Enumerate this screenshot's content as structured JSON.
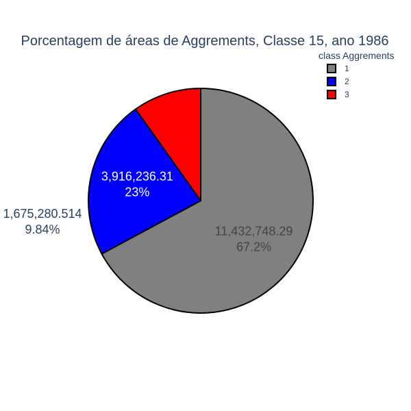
{
  "chart_data": {
    "type": "pie",
    "title": "Porcentagem de áreas de Aggrements, Classe 15, ano 1986",
    "legend": {
      "title": "class Aggrements",
      "placement": "top-right"
    },
    "slices": [
      {
        "label": "1",
        "value": 11432748.29,
        "value_text": "11,432,748.29",
        "percent_text": "67.2%",
        "color": "#808080",
        "text_color": "#444444"
      },
      {
        "label": "2",
        "value": 3916236.31,
        "value_text": "3,916,236.31",
        "percent_text": "23%",
        "color": "#0000ff",
        "text_color": "#ffffff"
      },
      {
        "label": "3",
        "value": 1675280.514,
        "value_text": "1,675,280.514",
        "percent_text": "9.84%",
        "color": "#ff0000",
        "text_color": "#2a3f5f"
      }
    ],
    "outline_color": "#000000",
    "title_color": "#2a3f5f"
  }
}
